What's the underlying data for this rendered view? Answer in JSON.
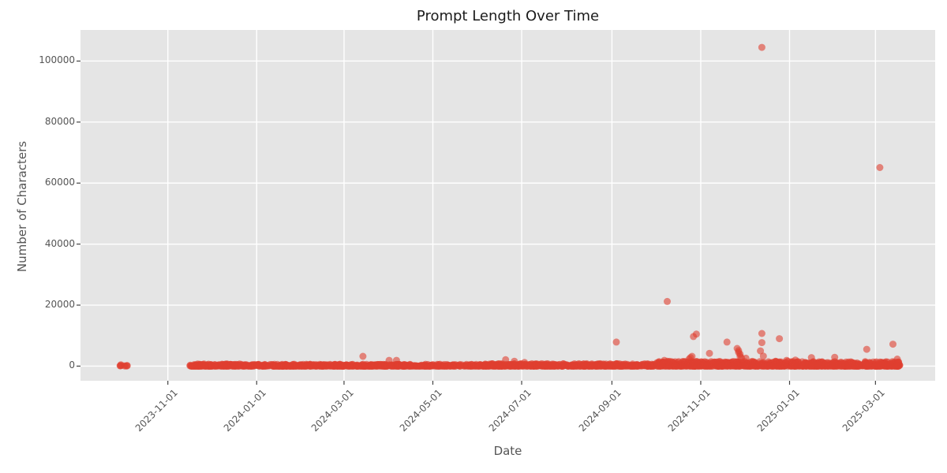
{
  "chart_data": {
    "type": "scatter",
    "title": "Prompt Length Over Time",
    "xlabel": "Date",
    "ylabel": "Number of Characters",
    "x_tick_labels": [
      "2023-11-01",
      "2024-01-01",
      "2024-03-01",
      "2024-05-01",
      "2024-07-01",
      "2024-09-01",
      "2024-11-01",
      "2025-01-01",
      "2025-03-01"
    ],
    "y_tick_values": [
      0,
      20000,
      40000,
      60000,
      80000,
      100000
    ],
    "y_tick_labels": [
      "0",
      "20000",
      "40000",
      "60000",
      "80000",
      "100000"
    ],
    "x_axis_range": [
      "2023-09-02",
      "2025-04-11"
    ],
    "y_axis_range": [
      -4800,
      110200
    ],
    "grid": true,
    "legend": "none",
    "styles": {
      "axes_bg": "#e5e5e5",
      "grid_color": "#ffffff",
      "point_color": "#e04030",
      "point_alpha": 0.6,
      "point_radius": 4.5,
      "tick_mark_color": "#444444",
      "tick_label_color": "#555555",
      "title_color": "#1b1b1b"
    },
    "outlier_points": [
      {
        "date": "2024-12-13",
        "chars": 104500
      },
      {
        "date": "2025-03-04",
        "chars": 65100
      },
      {
        "date": "2024-10-09",
        "chars": 21200
      },
      {
        "date": "2024-12-13",
        "chars": 10700
      },
      {
        "date": "2024-10-29",
        "chars": 10500
      },
      {
        "date": "2024-10-27",
        "chars": 9700
      },
      {
        "date": "2024-12-25",
        "chars": 9000
      },
      {
        "date": "2024-09-04",
        "chars": 7900
      },
      {
        "date": "2024-11-19",
        "chars": 7900
      },
      {
        "date": "2024-12-13",
        "chars": 7700
      },
      {
        "date": "2025-03-13",
        "chars": 7200
      },
      {
        "date": "2024-11-26",
        "chars": 5800
      },
      {
        "date": "2025-02-23",
        "chars": 5500
      },
      {
        "date": "2024-11-27",
        "chars": 5100
      },
      {
        "date": "2024-12-12",
        "chars": 5000
      },
      {
        "date": "2024-11-27",
        "chars": 4500
      },
      {
        "date": "2024-11-07",
        "chars": 4200
      },
      {
        "date": "2024-11-28",
        "chars": 3900
      },
      {
        "date": "2024-12-14",
        "chars": 3300
      },
      {
        "date": "2024-11-28",
        "chars": 3200
      },
      {
        "date": "2024-03-14",
        "chars": 3200
      },
      {
        "date": "2024-10-26",
        "chars": 3200
      },
      {
        "date": "2025-02-01",
        "chars": 2900
      },
      {
        "date": "2024-10-25",
        "chars": 2800
      },
      {
        "date": "2025-01-16",
        "chars": 2800
      },
      {
        "date": "2024-11-29",
        "chars": 2700
      },
      {
        "date": "2024-12-02",
        "chars": 2600
      },
      {
        "date": "2025-03-16",
        "chars": 2300
      },
      {
        "date": "2024-10-24",
        "chars": 2300
      },
      {
        "date": "2024-06-20",
        "chars": 2100
      },
      {
        "date": "2025-01-05",
        "chars": 2000
      },
      {
        "date": "2024-04-01",
        "chars": 1900
      },
      {
        "date": "2024-04-06",
        "chars": 1900
      },
      {
        "date": "2024-12-30",
        "chars": 1900
      },
      {
        "date": "2024-10-07",
        "chars": 1900
      },
      {
        "date": "2024-06-26",
        "chars": 1600
      },
      {
        "date": "2024-07-03",
        "chars": 1200
      }
    ],
    "baseline_segments": [
      {
        "start": "2023-09-28",
        "end": "2023-10-05",
        "points_per_day": 1.2,
        "char_min": 0,
        "char_max": 600
      },
      {
        "start": "2023-11-16",
        "end": "2023-12-31",
        "points_per_day": 4.5,
        "char_min": 0,
        "char_max": 700
      },
      {
        "start": "2024-01-01",
        "end": "2024-03-31",
        "points_per_day": 4.5,
        "char_min": 0,
        "char_max": 600
      },
      {
        "start": "2024-04-01",
        "end": "2024-05-31",
        "points_per_day": 3.2,
        "char_min": 0,
        "char_max": 600
      },
      {
        "start": "2024-06-01",
        "end": "2024-09-30",
        "points_per_day": 4.5,
        "char_min": 0,
        "char_max": 800
      },
      {
        "start": "2024-10-01",
        "end": "2024-12-31",
        "points_per_day": 6.0,
        "char_min": 0,
        "char_max": 1600
      },
      {
        "start": "2025-01-01",
        "end": "2025-03-18",
        "points_per_day": 6.0,
        "char_min": 0,
        "char_max": 1500
      }
    ]
  }
}
